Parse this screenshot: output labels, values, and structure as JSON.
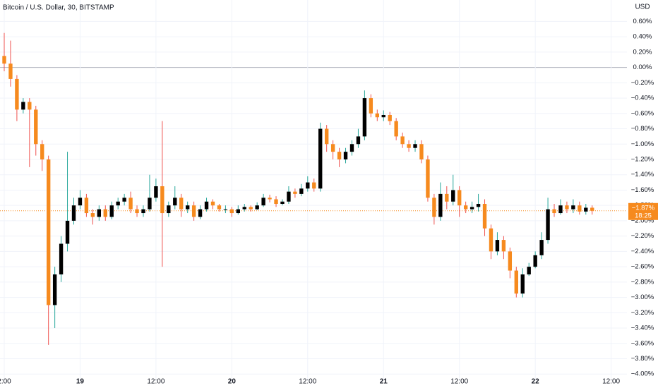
{
  "chart_data": {
    "type": "candlestick",
    "title": "Bitcoin / U.S. Dollar, 30, BITSTAMP",
    "currency_label": "USD",
    "up_color": "#000000",
    "down_color": "#f68a1e",
    "up_wick_color": "#26a69a",
    "down_wick_color": "#ef5350",
    "grid": true,
    "reference_line": 0,
    "x": [
      0,
      1,
      2,
      3,
      4,
      5,
      6,
      7,
      8,
      9,
      10,
      11,
      12,
      13,
      14,
      15,
      16,
      17,
      18,
      19,
      20,
      21,
      22,
      23,
      24,
      25,
      26,
      27,
      28,
      29,
      30,
      31,
      32,
      33,
      34,
      35,
      36,
      37,
      38,
      39,
      40,
      41,
      42,
      43,
      44,
      45,
      46,
      47,
      48,
      49,
      50,
      51,
      52,
      53,
      54,
      55,
      56,
      57,
      58,
      59,
      60,
      61,
      62,
      63,
      64,
      65,
      66,
      67,
      68,
      69,
      70,
      71,
      72,
      73,
      74,
      75,
      76,
      77,
      78,
      79,
      80,
      81,
      82,
      83,
      84,
      85,
      86,
      87,
      88,
      89,
      90,
      91,
      92,
      93
    ],
    "open": [
      0.15,
      0.05,
      -0.15,
      -0.55,
      -0.45,
      -0.55,
      -1.0,
      -1.2,
      -3.1,
      -2.7,
      -2.3,
      -2.0,
      -1.8,
      -1.7,
      -1.9,
      -1.95,
      -1.85,
      -1.95,
      -1.8,
      -1.75,
      -1.7,
      -1.85,
      -1.9,
      -1.85,
      -1.7,
      -1.55,
      -1.9,
      -1.8,
      -1.7,
      -1.85,
      -1.8,
      -1.95,
      -1.85,
      -1.75,
      -1.8,
      -1.85,
      -1.85,
      -1.9,
      -1.85,
      -1.82,
      -1.85,
      -1.8,
      -1.7,
      -1.72,
      -1.78,
      -1.75,
      -1.62,
      -1.65,
      -1.58,
      -1.5,
      -1.58,
      -0.8,
      -1.0,
      -1.1,
      -1.2,
      -1.1,
      -1.0,
      -0.9,
      -0.4,
      -0.6,
      -0.65,
      -0.62,
      -0.7,
      -0.9,
      -1.0,
      -1.05,
      -1.0,
      -1.2,
      -1.7,
      -1.95,
      -1.65,
      -1.75,
      -1.6,
      -1.8,
      -1.85,
      -1.82,
      -1.78,
      -2.1,
      -2.4,
      -2.25,
      -2.4,
      -2.65,
      -2.95,
      -2.7,
      -2.6,
      -2.45,
      -2.25,
      -1.85,
      -1.9,
      -1.8,
      -1.85,
      -1.8,
      -1.88,
      -1.83
    ],
    "high": [
      0.45,
      0.35,
      -0.1,
      -0.4,
      -0.4,
      -0.5,
      -0.95,
      -1.15,
      -2.6,
      -2.2,
      -1.1,
      -1.7,
      -1.6,
      -1.65,
      -1.85,
      -1.8,
      -1.8,
      -1.75,
      -1.7,
      -1.65,
      -1.62,
      -1.8,
      -1.8,
      -1.4,
      -1.45,
      -0.7,
      -1.75,
      -1.55,
      -1.65,
      -1.75,
      -1.75,
      -1.8,
      -1.7,
      -1.72,
      -1.78,
      -1.8,
      -1.82,
      -1.8,
      -1.78,
      -1.8,
      -1.76,
      -1.65,
      -1.66,
      -1.68,
      -1.72,
      -1.55,
      -1.58,
      -1.52,
      -1.42,
      -1.45,
      -0.72,
      -0.75,
      -0.95,
      -1.05,
      -1.05,
      -0.95,
      -0.8,
      -0.3,
      -0.35,
      -0.55,
      -0.56,
      -0.58,
      -0.66,
      -0.85,
      -0.95,
      -0.95,
      -0.95,
      -1.15,
      -1.65,
      -1.5,
      -1.55,
      -1.4,
      -1.55,
      -1.75,
      -1.75,
      -1.65,
      -1.72,
      -2.05,
      -2.15,
      -2.2,
      -2.35,
      -2.6,
      -2.62,
      -2.55,
      -2.4,
      -2.15,
      -1.7,
      -1.78,
      -1.72,
      -1.75,
      -1.72,
      -1.75,
      -1.78,
      -1.8
    ],
    "low": [
      -0.05,
      -0.25,
      -0.7,
      -0.6,
      -1.3,
      -1.15,
      -1.35,
      -3.62,
      -3.4,
      -2.8,
      -2.4,
      -2.05,
      -1.85,
      -1.95,
      -2.05,
      -2.0,
      -2.0,
      -1.98,
      -1.85,
      -1.8,
      -1.9,
      -1.95,
      -1.95,
      -1.88,
      -1.75,
      -2.6,
      -1.95,
      -1.85,
      -1.95,
      -1.9,
      -2.0,
      -1.98,
      -1.88,
      -1.85,
      -1.88,
      -1.9,
      -1.95,
      -1.92,
      -1.88,
      -1.88,
      -1.86,
      -1.82,
      -1.76,
      -1.82,
      -1.8,
      -1.78,
      -1.7,
      -1.68,
      -1.62,
      -1.62,
      -1.62,
      -1.1,
      -1.2,
      -1.3,
      -1.25,
      -1.15,
      -1.05,
      -0.95,
      -0.65,
      -0.7,
      -0.7,
      -0.75,
      -0.95,
      -1.05,
      -1.1,
      -1.1,
      -1.25,
      -1.75,
      -2.05,
      -2.0,
      -1.85,
      -1.8,
      -1.95,
      -1.9,
      -1.9,
      -1.88,
      -2.2,
      -2.5,
      -2.45,
      -2.5,
      -2.75,
      -3.0,
      -3.0,
      -2.72,
      -2.62,
      -2.5,
      -2.3,
      -1.95,
      -1.92,
      -1.9,
      -1.9,
      -1.92,
      -1.92,
      -1.92
    ],
    "close": [
      0.05,
      -0.15,
      -0.55,
      -0.45,
      -0.55,
      -1.0,
      -1.2,
      -3.1,
      -2.7,
      -2.3,
      -2.0,
      -1.8,
      -1.7,
      -1.9,
      -1.95,
      -1.85,
      -1.95,
      -1.8,
      -1.75,
      -1.7,
      -1.85,
      -1.9,
      -1.85,
      -1.7,
      -1.55,
      -1.9,
      -1.8,
      -1.7,
      -1.85,
      -1.8,
      -1.95,
      -1.85,
      -1.75,
      -1.8,
      -1.85,
      -1.85,
      -1.9,
      -1.85,
      -1.82,
      -1.85,
      -1.8,
      -1.7,
      -1.72,
      -1.78,
      -1.75,
      -1.62,
      -1.65,
      -1.58,
      -1.5,
      -1.58,
      -0.8,
      -1.0,
      -1.1,
      -1.2,
      -1.1,
      -1.0,
      -0.9,
      -0.4,
      -0.6,
      -0.65,
      -0.62,
      -0.7,
      -0.9,
      -1.0,
      -1.05,
      -1.0,
      -1.2,
      -1.7,
      -1.95,
      -1.65,
      -1.75,
      -1.6,
      -1.8,
      -1.85,
      -1.82,
      -1.78,
      -2.1,
      -2.4,
      -2.25,
      -2.4,
      -2.65,
      -2.95,
      -2.7,
      -2.6,
      -2.45,
      -2.25,
      -1.85,
      -1.9,
      -1.8,
      -1.85,
      -1.8,
      -1.88,
      -1.83,
      -1.87
    ],
    "xlim": [
      -0.67,
      98.5
    ],
    "xticks": [
      {
        "value": 0,
        "label": "2:00"
      },
      {
        "value": 12,
        "label": "19"
      },
      {
        "value": 24,
        "label": "12:00"
      },
      {
        "value": 36,
        "label": "20"
      },
      {
        "value": 48,
        "label": "12:00"
      },
      {
        "value": 60,
        "label": "21"
      },
      {
        "value": 72,
        "label": "12:00"
      },
      {
        "value": 84,
        "label": "22"
      },
      {
        "value": 96,
        "label": "12:00"
      }
    ],
    "ylim": [
      -4.09,
      0.88
    ],
    "yticks": [
      {
        "value": 0.6,
        "label": "0.60%"
      },
      {
        "value": 0.4,
        "label": "0.40%"
      },
      {
        "value": 0.2,
        "label": "0.20%"
      },
      {
        "value": 0,
        "label": "0.00%"
      },
      {
        "value": -0.2,
        "label": "−0.20%"
      },
      {
        "value": -0.4,
        "label": "−0.40%"
      },
      {
        "value": -0.6,
        "label": "−0.60%"
      },
      {
        "value": -0.8,
        "label": "−0.80%"
      },
      {
        "value": -1.0,
        "label": "−1.00%"
      },
      {
        "value": -1.2,
        "label": "−1.20%"
      },
      {
        "value": -1.4,
        "label": "−1.40%"
      },
      {
        "value": -1.6,
        "label": "−1.60%"
      },
      {
        "value": -1.8,
        "label": "−1.80%"
      },
      {
        "value": -2.0,
        "label": "−2.00%"
      },
      {
        "value": -2.2,
        "label": "−2.20%"
      },
      {
        "value": -2.4,
        "label": "−2.40%"
      },
      {
        "value": -2.6,
        "label": "−2.60%"
      },
      {
        "value": -2.8,
        "label": "−2.80%"
      },
      {
        "value": -3.0,
        "label": "−3.00%"
      },
      {
        "value": -3.2,
        "label": "−3.20%"
      },
      {
        "value": -3.4,
        "label": "−3.40%"
      },
      {
        "value": -3.6,
        "label": "−3.60%"
      },
      {
        "value": -3.8,
        "label": "−3.80%"
      },
      {
        "value": -4.0,
        "label": "−4.00%"
      }
    ],
    "last_price": {
      "value": -1.87,
      "label": "−1.87%",
      "countdown": "18:25",
      "color": "#f68a1e"
    }
  }
}
